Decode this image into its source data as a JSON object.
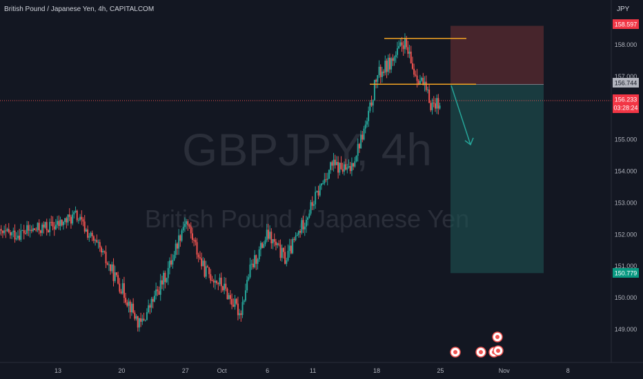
{
  "header": {
    "symbol_title": "British Pound / Japanese Yen, 4h, CAPITALCOM",
    "currency": "JPY"
  },
  "watermark": {
    "symbol": "GBPJPY, 4h",
    "name": "British Pound / Japanese Yen"
  },
  "colors": {
    "background": "#131722",
    "bullish": "#26a69a",
    "bearish": "#ef5350",
    "target_zone": "#1e5454",
    "stop_zone": "#5a2b30",
    "level_line": "#f5a623",
    "arrow": "#26a69a"
  },
  "price_tags": {
    "stop": "158.597",
    "entry": "156.744",
    "current": "156.233",
    "countdown": "03:28:24",
    "target": "150.779"
  },
  "events": [
    "event-marker",
    "event-marker",
    "event-marker",
    "event-marker",
    "event-marker"
  ],
  "chart_data": {
    "type": "candlestick",
    "title": "British Pound / Japanese Yen, 4h, CAPITALCOM",
    "x_ticks": [
      "13",
      "20",
      "27",
      "Oct",
      "6",
      "11",
      "18",
      "25",
      "Nov",
      "8"
    ],
    "y_ticks": [
      149.0,
      150.0,
      151.0,
      152.0,
      153.0,
      154.0,
      155.0,
      156.0,
      157.0,
      158.0
    ],
    "ylim": [
      148.1,
      159.4
    ],
    "grid": false,
    "series": [
      {
        "name": "GBPJPY",
        "description": "Price moved sideways near 152.0, fell to about 149.0 around the 20-22 mark, recovered to 152.6, dipped to 149.5 at the start of October, then rallied strongly from mid-October to a high near 158.2 before pulling back to about 156.2.",
        "approx_close_path": [
          {
            "date": "Sep 08",
            "value": 152.0
          },
          {
            "date": "Sep 13",
            "value": 152.3
          },
          {
            "date": "Sep 15",
            "value": 152.6
          },
          {
            "date": "Sep 18",
            "value": 151.3
          },
          {
            "date": "Sep 20",
            "value": 150.3
          },
          {
            "date": "Sep 22",
            "value": 149.1
          },
          {
            "date": "Sep 25",
            "value": 150.8
          },
          {
            "date": "Sep 27",
            "value": 152.5
          },
          {
            "date": "Sep 29",
            "value": 150.9
          },
          {
            "date": "Oct 01",
            "value": 150.4
          },
          {
            "date": "Oct 03",
            "value": 149.5
          },
          {
            "date": "Oct 04",
            "value": 150.8
          },
          {
            "date": "Oct 06",
            "value": 152.0
          },
          {
            "date": "Oct 08",
            "value": 151.2
          },
          {
            "date": "Oct 10",
            "value": 152.4
          },
          {
            "date": "Oct 13",
            "value": 154.2
          },
          {
            "date": "Oct 15",
            "value": 154.0
          },
          {
            "date": "Oct 17",
            "value": 155.6
          },
          {
            "date": "Oct 18",
            "value": 157.0
          },
          {
            "date": "Oct 20",
            "value": 157.6
          },
          {
            "date": "Oct 21",
            "value": 158.1
          },
          {
            "date": "Oct 22",
            "value": 157.2
          },
          {
            "date": "Oct 23",
            "value": 156.8
          },
          {
            "date": "Oct 24",
            "value": 156.1
          },
          {
            "date": "Oct 25",
            "value": 156.23
          }
        ]
      }
    ],
    "annotations": {
      "resistance_level": 158.2,
      "neckline_level": 156.75,
      "short_position": {
        "entry": 156.744,
        "stop": 158.597,
        "target": 150.779
      },
      "current_price": 156.233
    }
  }
}
